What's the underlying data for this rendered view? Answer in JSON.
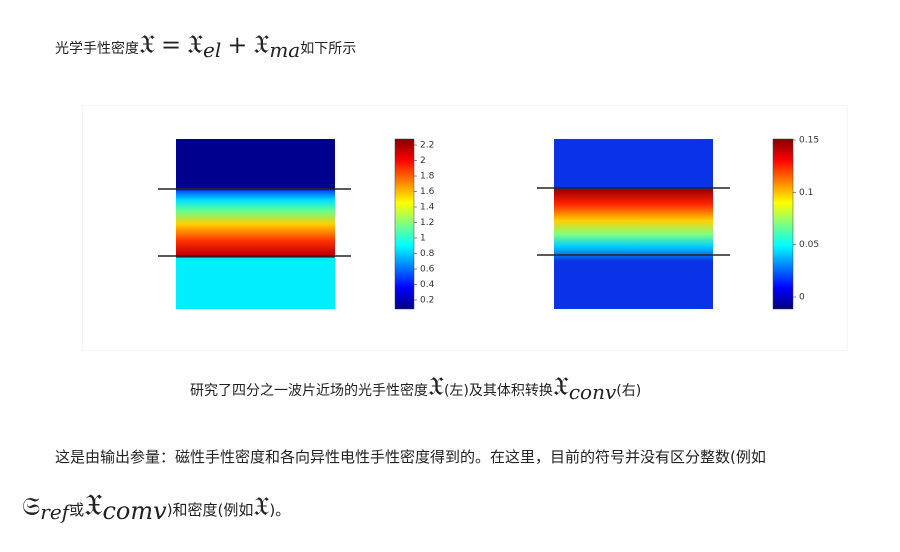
{
  "intro": {
    "text_before": "光学手性密度",
    "symbol": "𝔛",
    "equals": "=",
    "term1": "𝔛",
    "sub1": "el",
    "plus": "+",
    "term2": "𝔛",
    "sub2": "ma",
    "text_after": "如下所示"
  },
  "figure": {
    "left_colorbar_ticks": [
      2.2,
      2,
      1.8,
      1.6,
      1.4,
      1.2,
      1,
      0.8,
      0.6,
      0.4,
      0.2
    ],
    "right_colorbar_ticks": [
      0.15,
      0.1,
      0.05,
      0
    ]
  },
  "caption": {
    "text1": "研究了四分之一波片近场的光手性密度",
    "symbol1": "𝔛",
    "text2": "(左)及其体积转换",
    "symbol2": "𝔛",
    "sub2": "conv",
    "text3": "(右)"
  },
  "paragraph": {
    "line1": "这是由输出参量：磁性手性密度和各向异性电性手性密度得到的。在这里，目前的符号并没有区分整数(例如",
    "symbol1": "𝔖",
    "sub1": "ref",
    "or": "或",
    "symbol2": "𝔛",
    "sub2": "comv",
    "text2": ")和密度(例如",
    "symbol3": "𝔛",
    "text3": ")。"
  }
}
